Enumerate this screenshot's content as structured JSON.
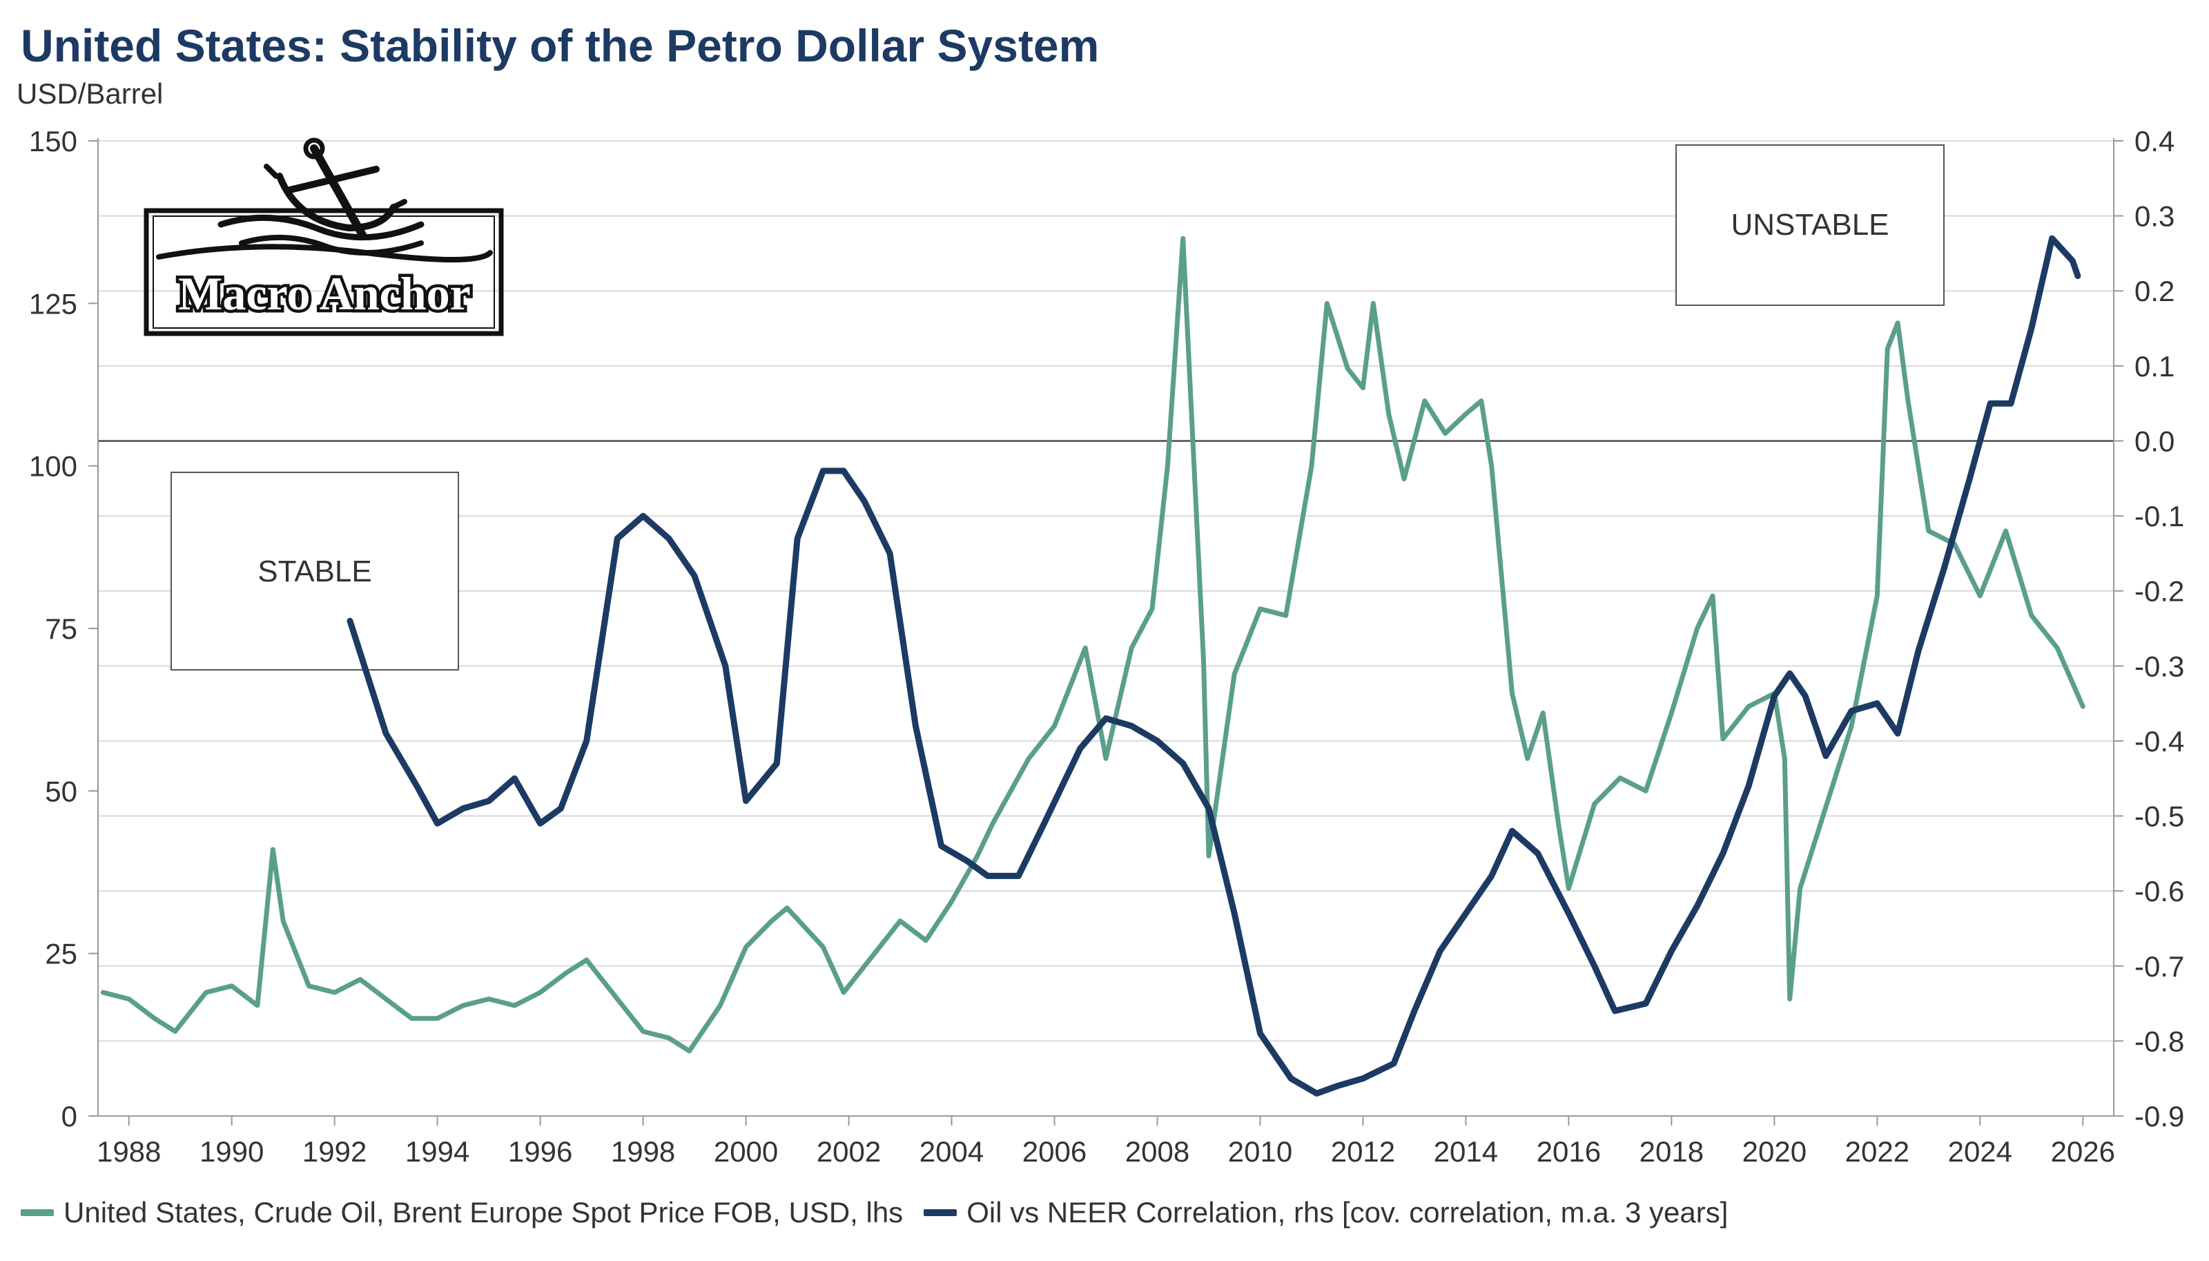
{
  "title": "United States: Stability of the Petro Dollar System",
  "unit_label": "USD/Barrel",
  "logo_text": "Macro Anchor",
  "colors": {
    "oil": "#5a9e8c",
    "corr": "#1c3a63",
    "grid": "#d9d9d9",
    "zero_line": "#666666",
    "title": "#1c3a63"
  },
  "chart_data": {
    "type": "line",
    "title": "United States: Stability of the Petro Dollar System",
    "ylabel": "USD/Barrel",
    "y2label": "",
    "xlim": [
      1987.4,
      2026.6
    ],
    "ylim": [
      0,
      150
    ],
    "y2lim": [
      -0.9,
      0.4
    ],
    "x_ticks": [
      "1988",
      "1990",
      "1992",
      "1994",
      "1996",
      "1998",
      "2000",
      "2002",
      "2004",
      "2006",
      "2008",
      "2010",
      "2012",
      "2014",
      "2016",
      "2018",
      "2020",
      "2022",
      "2024",
      "2026"
    ],
    "y_ticks": [
      "0",
      "25",
      "50",
      "75",
      "100",
      "125",
      "150"
    ],
    "y2_ticks": [
      "0.4",
      "0.3",
      "0.2",
      "0.1",
      "0.0",
      "-0.1",
      "-0.2",
      "-0.3",
      "-0.4",
      "-0.5",
      "-0.6",
      "-0.7",
      "-0.8",
      "-0.9"
    ],
    "annotations": [
      {
        "text": "STABLE",
        "x": 1992.3,
        "y2": -0.19
      },
      {
        "text": "UNSTABLE",
        "x": 2023.1,
        "y2": 0.29
      }
    ],
    "series": [
      {
        "name": "United States, Crude Oil, Brent Europe Spot Price FOB, USD, lhs",
        "axis": "left",
        "x": [
          1987.5,
          1988.0,
          1988.5,
          1988.9,
          1989.5,
          1990.0,
          1990.5,
          1990.8,
          1991.0,
          1991.5,
          1992.0,
          1992.5,
          1993.0,
          1993.5,
          1994.0,
          1994.5,
          1995.0,
          1995.5,
          1996.0,
          1996.5,
          1996.9,
          1997.5,
          1998.0,
          1998.5,
          1998.9,
          1999.5,
          2000.0,
          2000.5,
          2000.8,
          2001.5,
          2001.9,
          2002.5,
          2003.0,
          2003.5,
          2004.0,
          2004.5,
          2004.8,
          2005.5,
          2006.0,
          2006.6,
          2007.0,
          2007.5,
          2007.9,
          2008.2,
          2008.5,
          2008.9,
          2009.0,
          2009.5,
          2010.0,
          2010.5,
          2011.0,
          2011.3,
          2011.7,
          2012.0,
          2012.2,
          2012.5,
          2012.8,
          2013.2,
          2013.6,
          2014.0,
          2014.3,
          2014.5,
          2014.9,
          2015.2,
          2015.5,
          2015.8,
          2016.0,
          2016.5,
          2017.0,
          2017.5,
          2018.0,
          2018.5,
          2018.8,
          2019.0,
          2019.5,
          2020.0,
          2020.2,
          2020.3,
          2020.5,
          2020.9,
          2021.5,
          2022.0,
          2022.2,
          2022.4,
          2022.6,
          2023.0,
          2023.5,
          2024.0,
          2024.5,
          2025.0,
          2025.5,
          2026.0
        ],
        "values": [
          19,
          18,
          15,
          13,
          19,
          20,
          17,
          41,
          30,
          20,
          19,
          21,
          18,
          15,
          15,
          17,
          18,
          17,
          19,
          22,
          24,
          18,
          13,
          12,
          10,
          17,
          26,
          30,
          32,
          26,
          19,
          25,
          30,
          27,
          33,
          40,
          45,
          55,
          60,
          72,
          55,
          72,
          78,
          100,
          135,
          70,
          40,
          68,
          78,
          77,
          100,
          125,
          115,
          112,
          125,
          108,
          98,
          110,
          105,
          108,
          110,
          100,
          65,
          55,
          62,
          45,
          35,
          48,
          52,
          50,
          62,
          75,
          80,
          58,
          63,
          65,
          55,
          18,
          35,
          45,
          60,
          80,
          118,
          122,
          110,
          90,
          88,
          80,
          90,
          77,
          72,
          63
        ]
      },
      {
        "name": "Oil vs NEER Correlation, rhs [cov. correlation, m.a. 3 years]",
        "axis": "right",
        "x": [
          1992.3,
          1993.0,
          1993.6,
          1994.0,
          1994.5,
          1995.0,
          1995.5,
          1996.0,
          1996.4,
          1996.9,
          1997.5,
          1998.0,
          1998.5,
          1999.0,
          1999.6,
          2000.0,
          2000.6,
          2001.0,
          2001.5,
          2001.9,
          2002.3,
          2002.8,
          2003.3,
          2003.8,
          2004.3,
          2004.7,
          2005.3,
          2005.8,
          2006.5,
          2007.0,
          2007.5,
          2008.0,
          2008.5,
          2009.0,
          2009.5,
          2010.0,
          2010.6,
          2011.1,
          2011.5,
          2012.0,
          2012.6,
          2013.0,
          2013.5,
          2014.0,
          2014.5,
          2014.9,
          2015.4,
          2016.0,
          2016.5,
          2016.9,
          2017.5,
          2018.0,
          2018.5,
          2019.0,
          2019.5,
          2020.0,
          2020.3,
          2020.6,
          2021.0,
          2021.5,
          2022.0,
          2022.4,
          2022.8,
          2023.3,
          2023.8,
          2024.2,
          2024.6,
          2025.0,
          2025.4,
          2025.8,
          2025.9
        ],
        "values": [
          -0.24,
          -0.39,
          -0.46,
          -0.51,
          -0.49,
          -0.48,
          -0.45,
          -0.51,
          -0.49,
          -0.4,
          -0.13,
          -0.1,
          -0.13,
          -0.18,
          -0.3,
          -0.48,
          -0.43,
          -0.13,
          -0.04,
          -0.04,
          -0.08,
          -0.15,
          -0.38,
          -0.54,
          -0.56,
          -0.58,
          -0.58,
          -0.51,
          -0.41,
          -0.37,
          -0.38,
          -0.4,
          -0.43,
          -0.49,
          -0.63,
          -0.79,
          -0.85,
          -0.87,
          -0.86,
          -0.85,
          -0.83,
          -0.76,
          -0.68,
          -0.63,
          -0.58,
          -0.52,
          -0.55,
          -0.63,
          -0.7,
          -0.76,
          -0.75,
          -0.68,
          -0.62,
          -0.55,
          -0.46,
          -0.34,
          -0.31,
          -0.34,
          -0.42,
          -0.36,
          -0.35,
          -0.39,
          -0.28,
          -0.17,
          -0.05,
          0.05,
          0.05,
          0.15,
          0.27,
          0.24,
          0.22
        ]
      }
    ]
  },
  "legend": [
    {
      "label": "United States, Crude Oil, Brent Europe Spot Price FOB, USD, lhs"
    },
    {
      "label": "Oil vs NEER Correlation, rhs [cov. correlation, m.a. 3 years]"
    }
  ]
}
